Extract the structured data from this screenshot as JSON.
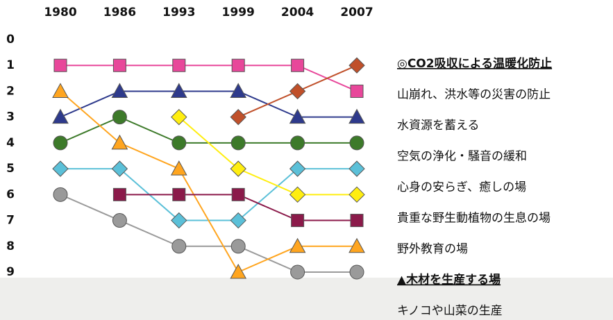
{
  "chart_data": {
    "type": "line",
    "categories": [
      "1980",
      "1986",
      "1993",
      "1999",
      "2004",
      "2007"
    ],
    "ylim": [
      0,
      9
    ],
    "yticks": [
      0,
      1,
      2,
      3,
      4,
      5,
      6,
      7,
      8,
      9
    ],
    "y_inverted": true,
    "series": [
      {
        "color": "#e8479a",
        "marker": "square",
        "values": [
          1,
          1,
          1,
          1,
          1,
          2
        ]
      },
      {
        "color": "#2e3a8c",
        "marker": "triangle",
        "values": [
          3,
          2,
          2,
          2,
          3,
          3
        ]
      },
      {
        "color": "#3d7a2a",
        "marker": "circle",
        "values": [
          4,
          3,
          4,
          4,
          4,
          4
        ]
      },
      {
        "color": "#5bc0d8",
        "marker": "diamond",
        "values": [
          5,
          5,
          7,
          7,
          5,
          5
        ]
      },
      {
        "color": "#9a9a9a",
        "marker": "circle",
        "values": [
          6,
          7,
          8,
          8,
          9,
          9
        ]
      },
      {
        "color": "#ffa51f",
        "marker": "triangle",
        "values": [
          2,
          4,
          5,
          9,
          8,
          8
        ]
      },
      {
        "color": "#ffee10",
        "marker": "diamond",
        "values": [
          null,
          null,
          3,
          5,
          6,
          6
        ]
      },
      {
        "color": "#c0502a",
        "marker": "diamond",
        "values": [
          null,
          null,
          null,
          3,
          2,
          1
        ]
      },
      {
        "color": "#8b1a4a",
        "marker": "square",
        "values": [
          null,
          6,
          6,
          6,
          7,
          7
        ]
      }
    ],
    "labels": [
      "◎CO2吸収による温暖化防止",
      "山崩れ、洪水等の災害の防止",
      "水資源を蓄える",
      "空気の浄化・騒音の緩和",
      "心身の安らぎ、癒しの場",
      "貴重な野生動植物の生息の場",
      "野外教育の場",
      "▲木材を生産する場",
      "キノコや山菜の生産"
    ],
    "emphasized_labels": [
      0,
      7
    ]
  }
}
